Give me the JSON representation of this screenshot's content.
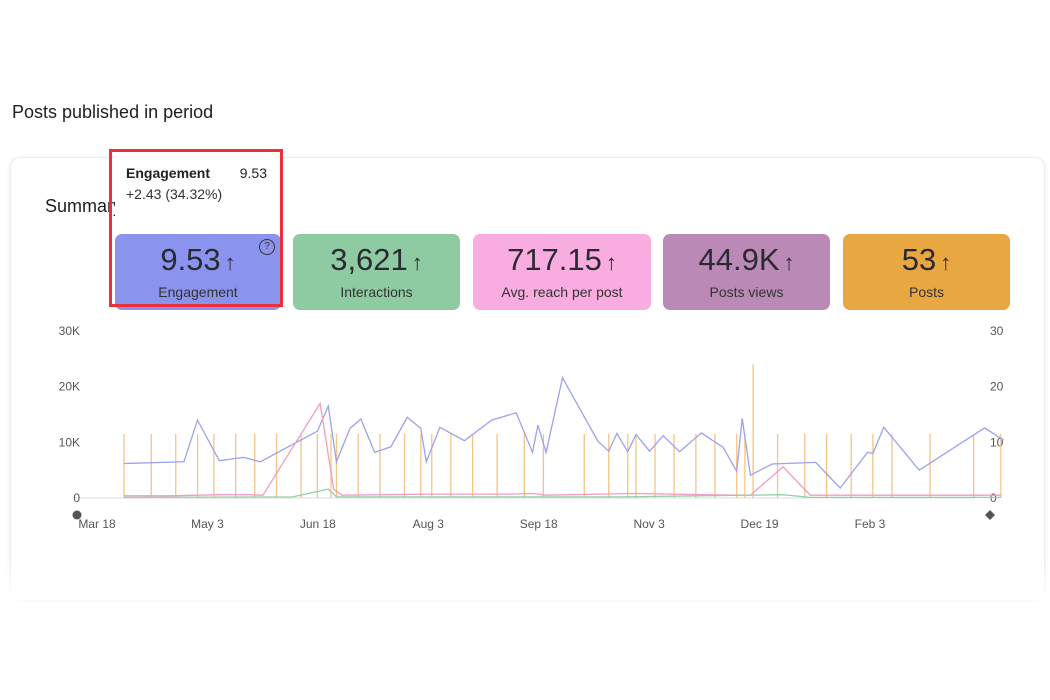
{
  "page": {
    "title": "Posts published in period"
  },
  "summary": {
    "title": "Summary"
  },
  "tooltip": {
    "label": "Engagement",
    "value": "9.53",
    "delta": "+2.43 (34.32%)"
  },
  "tiles": [
    {
      "value": "9.53",
      "arrow": "↑",
      "label": "Engagement",
      "color": "#8a93ee",
      "help": "?"
    },
    {
      "value": "3,621",
      "arrow": "↑",
      "label": "Interactions",
      "color": "#8ecba2"
    },
    {
      "value": "717.15",
      "arrow": "↑",
      "label": "Avg. reach per post",
      "color": "#f9acdf"
    },
    {
      "value": "44.9K",
      "arrow": "↑",
      "label": "Posts views",
      "color": "#bb89b6"
    },
    {
      "value": "53",
      "arrow": "↑",
      "label": "Posts",
      "color": "#e9a742"
    }
  ],
  "chart_data": {
    "type": "line",
    "x_tick_labels": [
      "Mar 18",
      "May 3",
      "Jun 18",
      "Aug 3",
      "Sep 18",
      "Nov 3",
      "Dec 19",
      "Feb 3"
    ],
    "y_left_ticks": [
      "30K",
      "20K",
      "10K",
      "0"
    ],
    "y_right_ticks": [
      "30",
      "20",
      "10",
      "0"
    ],
    "ylim_left": [
      0,
      30000
    ],
    "ylim_right": [
      0,
      30
    ],
    "x_range_days": [
      0,
      336
    ],
    "series": [
      {
        "name": "Posts views",
        "axis": "left",
        "color": "#9da1ee",
        "points": [
          [
            18,
            6200
          ],
          [
            40,
            6500
          ],
          [
            45,
            14000
          ],
          [
            53,
            6700
          ],
          [
            62,
            7300
          ],
          [
            68,
            6500
          ],
          [
            89,
            12000
          ],
          [
            93,
            16500
          ],
          [
            96,
            6500
          ],
          [
            101,
            12500
          ],
          [
            105,
            14200
          ],
          [
            110,
            8200
          ],
          [
            116,
            9200
          ],
          [
            122,
            14500
          ],
          [
            127,
            12500
          ],
          [
            129,
            6500
          ],
          [
            134,
            12700
          ],
          [
            143,
            10300
          ],
          [
            153,
            14000
          ],
          [
            162,
            15300
          ],
          [
            168,
            8200
          ],
          [
            170,
            13100
          ],
          [
            173,
            8200
          ],
          [
            179,
            21600
          ],
          [
            192,
            10200
          ],
          [
            196,
            8400
          ],
          [
            199,
            11600
          ],
          [
            203,
            8300
          ],
          [
            206,
            11400
          ],
          [
            211,
            8400
          ],
          [
            216,
            11200
          ],
          [
            222,
            8300
          ],
          [
            230,
            11700
          ],
          [
            238,
            9100
          ],
          [
            243,
            4800
          ],
          [
            245,
            14300
          ],
          [
            248,
            4100
          ],
          [
            256,
            6100
          ],
          [
            272,
            6400
          ],
          [
            281,
            1800
          ],
          [
            291,
            8200
          ],
          [
            293,
            8000
          ],
          [
            297,
            12700
          ],
          [
            310,
            5000
          ],
          [
            334,
            12600
          ],
          [
            341,
            10400
          ]
        ]
      },
      {
        "name": "Avg. reach per post",
        "axis": "left",
        "color": "#f19cc4",
        "points": [
          [
            18,
            400
          ],
          [
            35,
            400
          ],
          [
            53,
            600
          ],
          [
            63,
            600
          ],
          [
            69,
            500
          ],
          [
            90,
            17000
          ],
          [
            95,
            1600
          ],
          [
            98,
            500
          ],
          [
            115,
            600
          ],
          [
            132,
            700
          ],
          [
            160,
            700
          ],
          [
            168,
            800
          ],
          [
            173,
            500
          ],
          [
            205,
            800
          ],
          [
            230,
            600
          ],
          [
            243,
            500
          ],
          [
            248,
            500
          ],
          [
            260,
            5600
          ],
          [
            270,
            500
          ],
          [
            340,
            500
          ]
        ]
      },
      {
        "name": "Interactions",
        "axis": "left",
        "color": "#96d0a8",
        "points": [
          [
            18,
            100
          ],
          [
            80,
            200
          ],
          [
            93,
            1600
          ],
          [
            96,
            200
          ],
          [
            200,
            200
          ],
          [
            260,
            600
          ],
          [
            270,
            100
          ],
          [
            340,
            100
          ]
        ]
      },
      {
        "name": "Posts",
        "axis": "right",
        "color": "#f3c487",
        "bars": [
          [
            18,
            11.5
          ],
          [
            28,
            11.5
          ],
          [
            37,
            11.5
          ],
          [
            45,
            11.5
          ],
          [
            51,
            11.5
          ],
          [
            59,
            11.5
          ],
          [
            66,
            11.5
          ],
          [
            74,
            11.5
          ],
          [
            83,
            11.5
          ],
          [
            89,
            11.5
          ],
          [
            94,
            11.5
          ],
          [
            96,
            11.5
          ],
          [
            104,
            11.5
          ],
          [
            112,
            11.5
          ],
          [
            121,
            11.5
          ],
          [
            127,
            11.5
          ],
          [
            131,
            11.5
          ],
          [
            138,
            11.5
          ],
          [
            146,
            11.5
          ],
          [
            155,
            11.5
          ],
          [
            165,
            11.5
          ],
          [
            172,
            11.5
          ],
          [
            187,
            11.5
          ],
          [
            196,
            11.5
          ],
          [
            203,
            11.5
          ],
          [
            206,
            11.5
          ],
          [
            213,
            11.5
          ],
          [
            220,
            11.5
          ],
          [
            228,
            11.5
          ],
          [
            235,
            11.5
          ],
          [
            243,
            11.5
          ],
          [
            246,
            11.5
          ],
          [
            249,
            24
          ],
          [
            258,
            11.5
          ],
          [
            268,
            11.5
          ],
          [
            276,
            11.5
          ],
          [
            285,
            11.5
          ],
          [
            293,
            11.5
          ],
          [
            300,
            11.5
          ],
          [
            314,
            11.5
          ],
          [
            330,
            11.5
          ],
          [
            340,
            11.5
          ]
        ]
      }
    ]
  }
}
